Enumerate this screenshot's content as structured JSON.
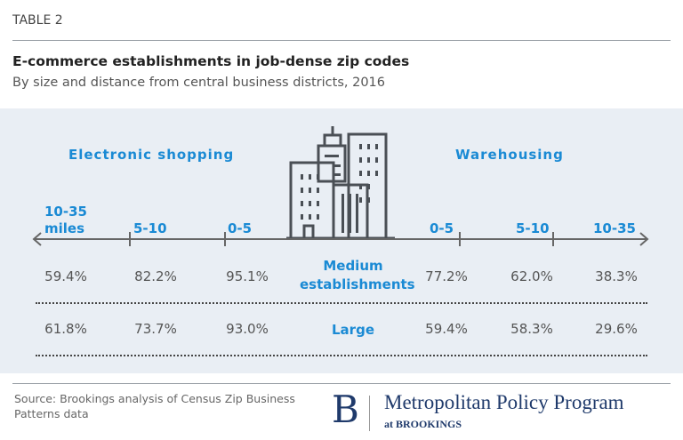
{
  "header": {
    "table_label": "TABLE 2",
    "title": "E-commerce establishments in job-dense zip codes",
    "subtitle": "By size and distance from central business districts, 2016"
  },
  "groups": {
    "left": "Electronic shopping",
    "right": "Warehousing"
  },
  "axis": {
    "left": [
      "10-35",
      "5-10",
      "0-5"
    ],
    "left_unit": "miles",
    "right": [
      "0-5",
      "5-10",
      "10-35"
    ]
  },
  "chart_data": {
    "type": "table",
    "columns": [
      "Electronic shopping 10-35 miles",
      "Electronic shopping 5-10",
      "Electronic shopping 0-5",
      "Warehousing 0-5",
      "Warehousing 5-10",
      "Warehousing 10-35"
    ],
    "rows": [
      {
        "label": "Medium establishments",
        "values": [
          "59.4%",
          "82.2%",
          "95.1%",
          "77.2%",
          "62.0%",
          "38.3%"
        ]
      },
      {
        "label": "Large",
        "values": [
          "61.8%",
          "73.7%",
          "93.0%",
          "59.4%",
          "58.3%",
          "29.6%"
        ]
      }
    ]
  },
  "footer": {
    "source": "Source: Brookings analysis of Census Zip Business Patterns data",
    "logo_letter": "B",
    "logo_title": "Metropolitan Policy Program",
    "logo_sub": "at BROOKINGS"
  },
  "colors": {
    "accent": "#1a8ad4",
    "panel": "#e9eef4",
    "brand": "#1f3a6b"
  }
}
